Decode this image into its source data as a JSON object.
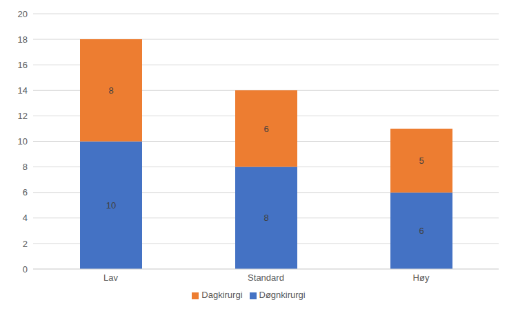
{
  "chart_data": {
    "type": "bar",
    "categories": [
      "Lav",
      "Standard",
      "Høy"
    ],
    "series": [
      {
        "name": "Døgnkirurgi",
        "color": "#4472c4",
        "values": [
          10,
          8,
          6
        ]
      },
      {
        "name": "Dagkirurgi",
        "color": "#ed7d31",
        "values": [
          8,
          6,
          5
        ]
      }
    ],
    "ylim": [
      0,
      20
    ],
    "yticks": [
      0,
      2,
      4,
      6,
      8,
      10,
      12,
      14,
      16,
      18,
      20
    ],
    "grid": true,
    "stacked": true,
    "data_labels": true,
    "legend": "bottom"
  }
}
